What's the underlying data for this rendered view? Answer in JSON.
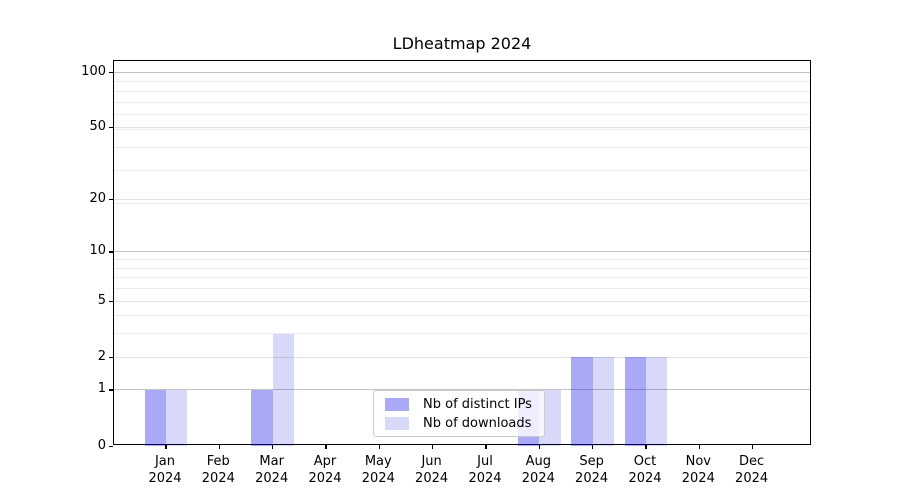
{
  "chart_data": {
    "type": "bar",
    "title": "LDheatmap 2024",
    "categories": [
      "Jan 2024",
      "Feb 2024",
      "Mar 2024",
      "Apr 2024",
      "May 2024",
      "Jun 2024",
      "Jul 2024",
      "Aug 2024",
      "Sep 2024",
      "Oct 2024",
      "Nov 2024",
      "Dec 2024"
    ],
    "series": [
      {
        "name": "Nb of distinct IPs",
        "color": "rgba(10,10,235,0.35)",
        "values": [
          1,
          0,
          1,
          0,
          0,
          0,
          0,
          1,
          2,
          2,
          0,
          0
        ]
      },
      {
        "name": "Nb of downloads",
        "color": "rgba(10,10,215,0.16)",
        "values": [
          1,
          0,
          3,
          0,
          0,
          0,
          0,
          1,
          2,
          2,
          0,
          0
        ]
      }
    ],
    "yscale": "log1p",
    "yticks": [
      0,
      1,
      2,
      5,
      10,
      20,
      50,
      100
    ],
    "ylim": [
      0,
      115
    ],
    "xlabel": "",
    "ylabel": "",
    "grid": "both",
    "legend_position": "lower-center"
  },
  "colors": {
    "grid_major": "#c3c3c3",
    "grid_mid": "#e2e2e2",
    "grid_minor": "#ececec",
    "spine": "#000000",
    "text": "#000000",
    "legend_border": "#cccccc"
  }
}
